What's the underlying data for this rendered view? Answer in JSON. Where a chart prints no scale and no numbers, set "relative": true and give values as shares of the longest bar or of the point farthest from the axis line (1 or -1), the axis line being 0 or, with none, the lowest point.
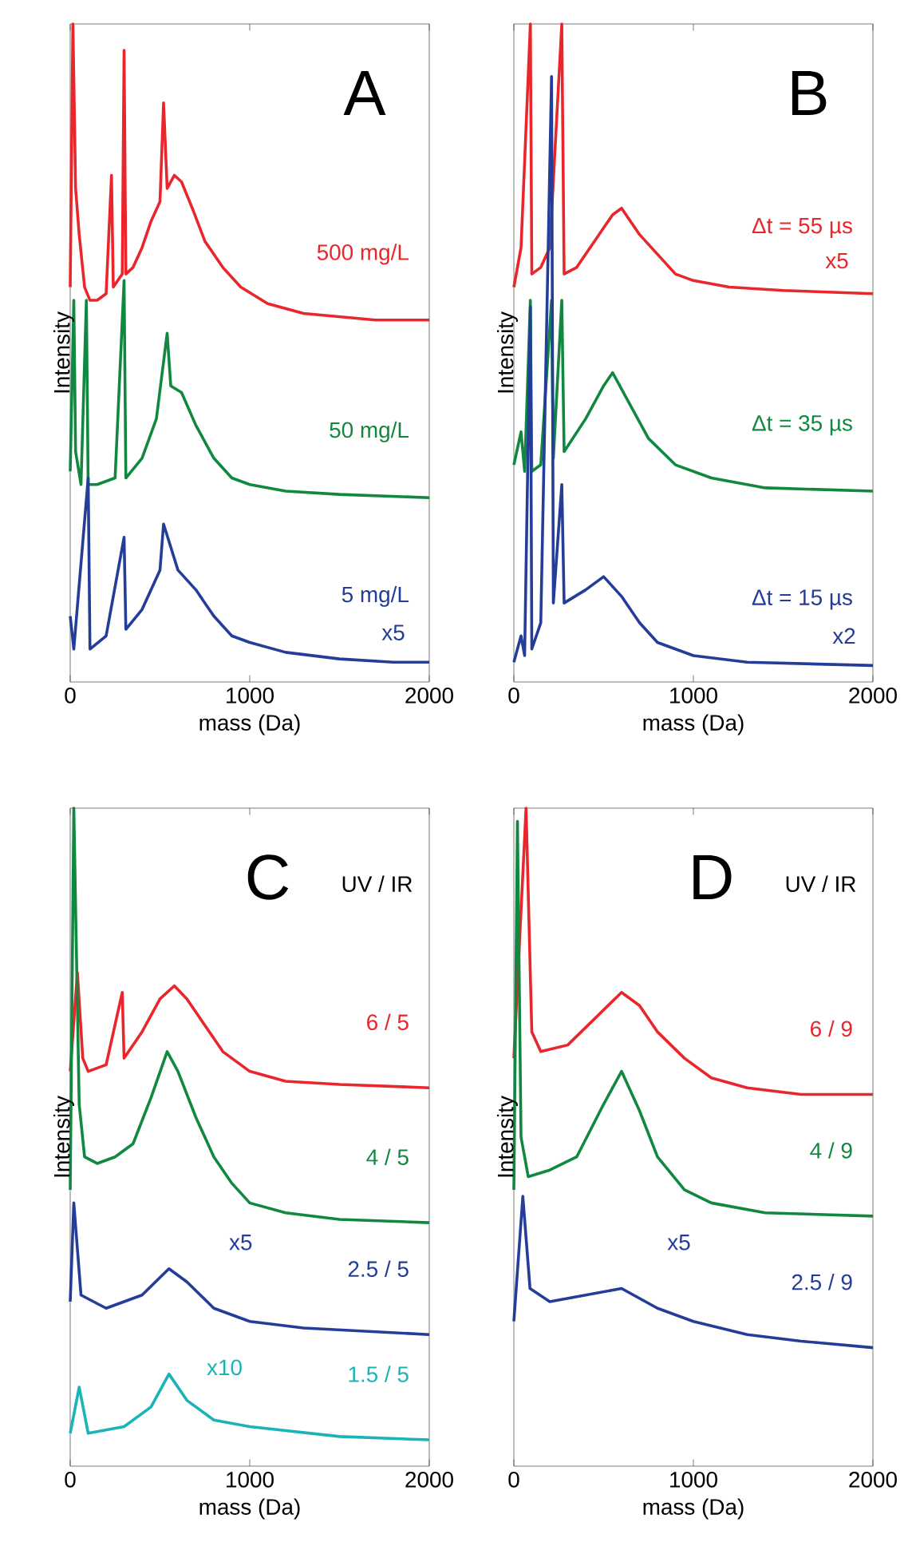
{
  "chart_data": [
    {
      "type": "line",
      "title": "A",
      "xlabel": "mass (Da)",
      "ylabel": "Intensity",
      "relative": true,
      "xlim": [
        0,
        2000
      ],
      "xticks": [
        0,
        1000,
        2000
      ],
      "series": [
        {
          "name": "500 mg/L",
          "color": "#e8262b",
          "x": [
            0,
            15,
            30,
            50,
            80,
            110,
            150,
            200,
            230,
            240,
            290,
            300,
            310,
            350,
            400,
            450,
            500,
            520,
            540,
            580,
            620,
            680,
            750,
            850,
            950,
            1100,
            1300,
            1500,
            1700,
            2000
          ],
          "values": [
            0.6,
            1.0,
            0.75,
            0.68,
            0.6,
            0.58,
            0.58,
            0.59,
            0.77,
            0.6,
            0.62,
            0.96,
            0.62,
            0.63,
            0.66,
            0.7,
            0.73,
            0.88,
            0.75,
            0.77,
            0.76,
            0.72,
            0.67,
            0.63,
            0.6,
            0.575,
            0.56,
            0.555,
            0.55,
            0.55
          ]
        },
        {
          "name": "50 mg/L",
          "color": "#11883f",
          "x": [
            0,
            20,
            30,
            60,
            90,
            100,
            150,
            250,
            300,
            310,
            400,
            480,
            540,
            560,
            620,
            700,
            800,
            900,
            1000,
            1200,
            1500,
            2000
          ],
          "values": [
            0.32,
            0.58,
            0.35,
            0.3,
            0.58,
            0.3,
            0.3,
            0.31,
            0.61,
            0.31,
            0.34,
            0.4,
            0.53,
            0.45,
            0.44,
            0.39,
            0.34,
            0.31,
            0.3,
            0.29,
            0.285,
            0.28
          ]
        },
        {
          "name": "5 mg/L",
          "color": "#233d99",
          "x": [
            0,
            20,
            100,
            110,
            200,
            300,
            310,
            400,
            500,
            520,
            600,
            700,
            800,
            900,
            1000,
            1200,
            1500,
            1800,
            2000
          ],
          "values": [
            0.1,
            0.05,
            0.31,
            0.05,
            0.07,
            0.22,
            0.08,
            0.11,
            0.17,
            0.24,
            0.17,
            0.14,
            0.1,
            0.07,
            0.06,
            0.045,
            0.035,
            0.03,
            0.03
          ]
        }
      ],
      "annotations": [
        "x5"
      ]
    },
    {
      "type": "line",
      "title": "B",
      "xlabel": "mass (Da)",
      "ylabel": "Intensity",
      "relative": true,
      "xlim": [
        0,
        2000
      ],
      "xticks": [
        0,
        1000,
        2000
      ],
      "series": [
        {
          "name": "Δt = 55 µs",
          "color": "#e8262b",
          "x": [
            0,
            40,
            92,
            100,
            150,
            200,
            267,
            280,
            350,
            450,
            550,
            600,
            700,
            800,
            900,
            1000,
            1200,
            1500,
            2000
          ],
          "values": [
            0.6,
            0.66,
            1.0,
            0.62,
            0.63,
            0.66,
            1.0,
            0.62,
            0.63,
            0.67,
            0.71,
            0.72,
            0.68,
            0.65,
            0.62,
            0.61,
            0.6,
            0.595,
            0.59
          ]
        },
        {
          "name": "Δt = 35 µs",
          "color": "#11883f",
          "x": [
            0,
            40,
            60,
            92,
            100,
            150,
            210,
            220,
            267,
            280,
            400,
            500,
            550,
            650,
            750,
            900,
            1100,
            1400,
            2000
          ],
          "values": [
            0.33,
            0.38,
            0.32,
            0.58,
            0.32,
            0.33,
            0.58,
            0.34,
            0.58,
            0.35,
            0.4,
            0.45,
            0.47,
            0.42,
            0.37,
            0.33,
            0.31,
            0.295,
            0.29
          ]
        },
        {
          "name": "Δt = 15 µs",
          "color": "#233d99",
          "x": [
            0,
            40,
            60,
            92,
            100,
            150,
            210,
            220,
            267,
            280,
            400,
            500,
            600,
            700,
            800,
            1000,
            1300,
            2000
          ],
          "values": [
            0.03,
            0.07,
            0.04,
            0.57,
            0.05,
            0.09,
            0.92,
            0.12,
            0.3,
            0.12,
            0.14,
            0.16,
            0.13,
            0.09,
            0.06,
            0.04,
            0.03,
            0.025
          ]
        }
      ],
      "annotations": [
        "x5",
        "x2"
      ]
    },
    {
      "type": "line",
      "title": "C",
      "legend_title": "UV / IR",
      "xlabel": "mass (Da)",
      "ylabel": "Intensity",
      "relative": true,
      "xlim": [
        0,
        2000
      ],
      "xticks": [
        0,
        1000,
        2000
      ],
      "series": [
        {
          "name": "6 / 5",
          "color": "#e8262b",
          "x": [
            0,
            40,
            70,
            100,
            200,
            290,
            300,
            400,
            500,
            580,
            650,
            750,
            850,
            1000,
            1200,
            1500,
            2000
          ],
          "values": [
            0.6,
            0.75,
            0.62,
            0.6,
            0.61,
            0.72,
            0.62,
            0.66,
            0.71,
            0.73,
            0.71,
            0.67,
            0.63,
            0.6,
            0.585,
            0.58,
            0.575
          ]
        },
        {
          "name": "4 / 5",
          "color": "#11883f",
          "x": [
            0,
            20,
            50,
            80,
            150,
            250,
            350,
            450,
            540,
            600,
            700,
            800,
            900,
            1000,
            1200,
            1500,
            2000
          ],
          "values": [
            0.42,
            1.0,
            0.55,
            0.47,
            0.46,
            0.47,
            0.49,
            0.56,
            0.63,
            0.6,
            0.53,
            0.47,
            0.43,
            0.4,
            0.385,
            0.375,
            0.37
          ]
        },
        {
          "name": "2.5 / 5",
          "color": "#233d99",
          "x": [
            0,
            20,
            60,
            200,
            400,
            550,
            650,
            800,
            1000,
            1300,
            2000
          ],
          "values": [
            0.25,
            0.4,
            0.26,
            0.24,
            0.26,
            0.3,
            0.28,
            0.24,
            0.22,
            0.21,
            0.2
          ]
        },
        {
          "name": "1.5 / 5",
          "color": "#1ab4b8",
          "x": [
            0,
            50,
            100,
            300,
            450,
            550,
            650,
            800,
            1000,
            1500,
            2000
          ],
          "values": [
            0.05,
            0.12,
            0.05,
            0.06,
            0.09,
            0.14,
            0.1,
            0.07,
            0.06,
            0.045,
            0.04
          ]
        }
      ],
      "annotations": [
        "x5",
        "x10"
      ]
    },
    {
      "type": "line",
      "title": "D",
      "legend_title": "UV / IR",
      "xlabel": "mass (Da)",
      "ylabel": "Intensity",
      "relative": true,
      "xlim": [
        0,
        2000
      ],
      "xticks": [
        0,
        1000,
        2000
      ],
      "series": [
        {
          "name": "6 / 9",
          "color": "#e8262b",
          "x": [
            0,
            68,
            100,
            150,
            300,
            450,
            600,
            700,
            800,
            950,
            1100,
            1300,
            1600,
            2000
          ],
          "values": [
            0.62,
            1.0,
            0.66,
            0.63,
            0.64,
            0.68,
            0.72,
            0.7,
            0.66,
            0.62,
            0.59,
            0.575,
            0.565,
            0.565
          ]
        },
        {
          "name": "4 / 9",
          "color": "#11883f",
          "x": [
            0,
            20,
            40,
            80,
            200,
            350,
            500,
            600,
            700,
            800,
            950,
            1100,
            1400,
            2000
          ],
          "values": [
            0.42,
            0.98,
            0.5,
            0.44,
            0.45,
            0.47,
            0.55,
            0.6,
            0.54,
            0.47,
            0.42,
            0.4,
            0.385,
            0.38
          ]
        },
        {
          "name": "2.5 / 9",
          "color": "#233d99",
          "x": [
            0,
            50,
            90,
            200,
            400,
            600,
            800,
            1000,
            1300,
            1600,
            2000
          ],
          "values": [
            0.22,
            0.41,
            0.27,
            0.25,
            0.26,
            0.27,
            0.24,
            0.22,
            0.2,
            0.19,
            0.18
          ]
        }
      ],
      "annotations": [
        "x5"
      ]
    }
  ]
}
